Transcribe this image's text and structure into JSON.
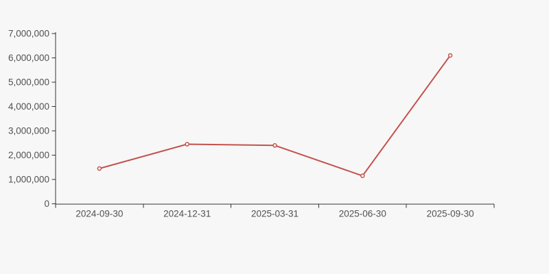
{
  "page": {
    "background_color": "#f7f7f7"
  },
  "chart_data": {
    "type": "line",
    "title": "",
    "xlabel": "",
    "ylabel": "",
    "categories": [
      "2024-09-30",
      "2024-12-31",
      "2025-03-31",
      "2025-06-30",
      "2025-09-30"
    ],
    "series": [
      {
        "name": "value",
        "values": [
          1450000,
          2450000,
          2400000,
          1150000,
          6100000
        ]
      }
    ],
    "ylim": [
      0,
      7000000
    ],
    "y_tick_step": 1000000,
    "y_tick_labels": [
      "0",
      "1,000,000",
      "2,000,000",
      "3,000,000",
      "4,000,000",
      "5,000,000",
      "6,000,000",
      "7,000,000"
    ],
    "grid": false,
    "legend": false,
    "marker": "hollow-circle",
    "line_color": "#c3514c",
    "marker_fill": "#ffffff",
    "axis_color": "#333333",
    "label_color": "#515151"
  }
}
